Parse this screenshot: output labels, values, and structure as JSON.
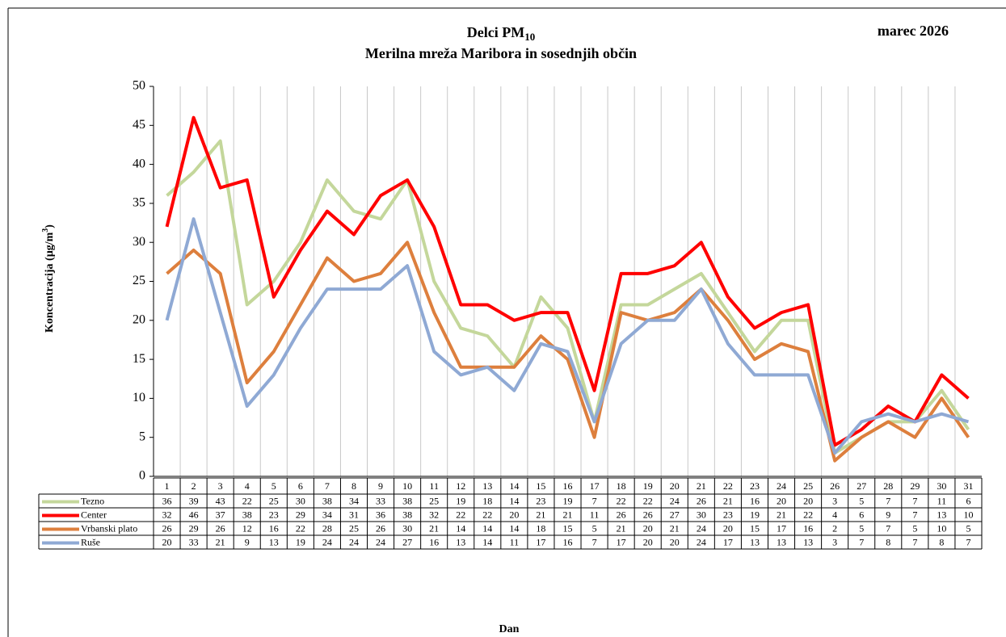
{
  "chart_data": {
    "type": "line",
    "title": "Delci PM",
    "title_subscript": "10",
    "subtitle": "Merilna mreža Maribora in sosednjih občin",
    "date_label": "marec 2026",
    "ylabel": "Koncentracija (µg/m",
    "ylabel_superscript": "3",
    "ylabel_end": ")",
    "xlabel": "Dan",
    "categories": [
      1,
      2,
      3,
      4,
      5,
      6,
      7,
      8,
      9,
      10,
      11,
      12,
      13,
      14,
      15,
      16,
      17,
      18,
      19,
      20,
      21,
      22,
      23,
      24,
      25,
      26,
      27,
      28,
      29,
      30,
      31
    ],
    "series": [
      {
        "name": "Tezno",
        "color": "#c4d79b",
        "values": [
          36,
          39,
          43,
          22,
          25,
          30,
          38,
          34,
          33,
          38,
          25,
          19,
          18,
          14,
          23,
          19,
          7,
          22,
          22,
          24,
          26,
          21,
          16,
          20,
          20,
          3,
          5,
          7,
          7,
          11,
          6
        ]
      },
      {
        "name": "Center",
        "color": "#ff0000",
        "values": [
          32,
          46,
          37,
          38,
          23,
          29,
          34,
          31,
          36,
          38,
          32,
          22,
          22,
          20,
          21,
          21,
          11,
          26,
          26,
          27,
          30,
          23,
          19,
          21,
          22,
          4,
          6,
          9,
          7,
          13,
          10
        ]
      },
      {
        "name": "Vrbanski plato",
        "color": "#dd7f3d",
        "values": [
          26,
          29,
          26,
          12,
          16,
          22,
          28,
          25,
          26,
          30,
          21,
          14,
          14,
          14,
          18,
          15,
          5,
          21,
          20,
          21,
          24,
          20,
          15,
          17,
          16,
          2,
          5,
          7,
          5,
          10,
          5
        ]
      },
      {
        "name": "Ruše",
        "color": "#8fa9d4",
        "values": [
          20,
          33,
          21,
          9,
          13,
          19,
          24,
          24,
          24,
          27,
          16,
          13,
          14,
          11,
          17,
          16,
          7,
          17,
          20,
          20,
          24,
          17,
          13,
          13,
          13,
          3,
          7,
          8,
          7,
          8,
          7
        ]
      }
    ],
    "ylim": [
      0,
      50
    ],
    "yticks": [
      0,
      5,
      10,
      15,
      20,
      25,
      30,
      35,
      40,
      45,
      50
    ],
    "grid": true
  }
}
